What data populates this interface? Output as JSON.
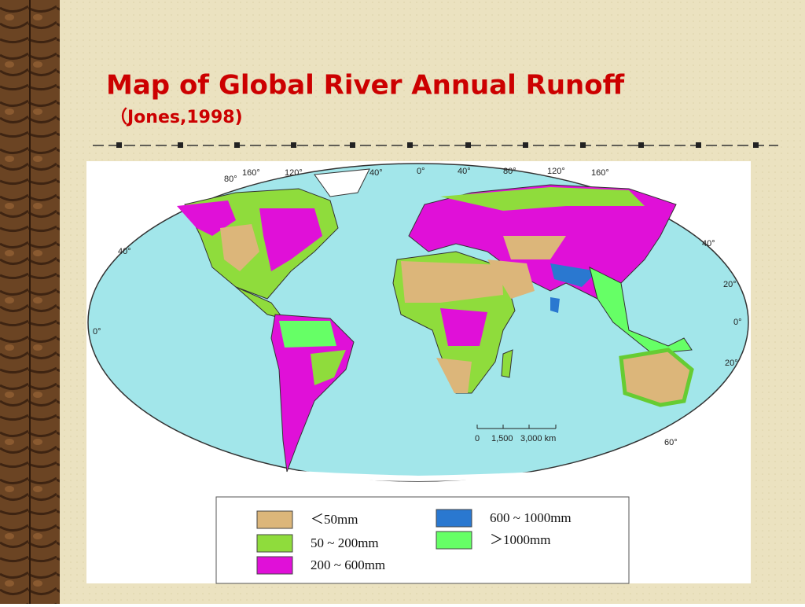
{
  "title": "Map of Global River Annual Runoff",
  "subtitle": "（Jones,1998)",
  "map": {
    "top_labels": [
      "80°",
      "160°",
      "120°",
      "40°",
      "0°",
      "40°",
      "80°",
      "120°",
      "160°"
    ],
    "left_labels": [
      "40°",
      "0°"
    ],
    "right_labels": [
      "40°",
      "20°",
      "0°",
      "20°",
      "60°"
    ],
    "scale_labels": [
      "0",
      "1,500",
      "3,000 km"
    ]
  },
  "legend": [
    {
      "label": "＜50mm",
      "color": "#dcb67a"
    },
    {
      "label": "50 ~ 200mm",
      "color": "#8fdc3c"
    },
    {
      "label": "200 ~ 600mm",
      "color": "#e010d8"
    },
    {
      "label": "600 ~ 1000mm",
      "color": "#2a78d0"
    },
    {
      "label": "＞1000mm",
      "color": "#66ff66"
    }
  ]
}
